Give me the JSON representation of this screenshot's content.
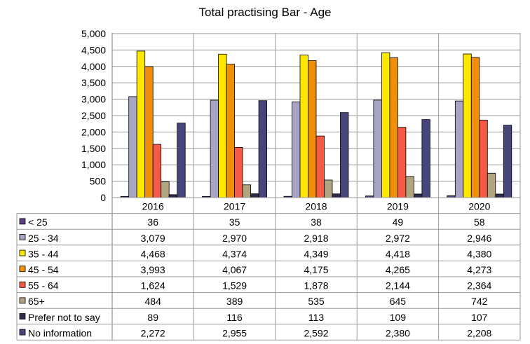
{
  "chart_data": {
    "type": "bar",
    "title": "Total practising Bar - Age",
    "categories": [
      "2016",
      "2017",
      "2018",
      "2019",
      "2020"
    ],
    "yticks": [
      "0",
      "500",
      "1,000",
      "1,500",
      "2,000",
      "2,500",
      "3,000",
      "3,500",
      "4,000",
      "4,500",
      "5,000"
    ],
    "ylim": [
      0,
      5000
    ],
    "grid": true,
    "legend": "data-table",
    "series": [
      {
        "name": "< 25",
        "color": "#5b3f80",
        "values": [
          36,
          35,
          38,
          49,
          58
        ],
        "labels": [
          "36",
          "35",
          "38",
          "49",
          "58"
        ]
      },
      {
        "name": "25 - 34",
        "color": "#a7a5c6",
        "values": [
          3079,
          2970,
          2918,
          2972,
          2946
        ],
        "labels": [
          "3,079",
          "2,970",
          "2,918",
          "2,972",
          "2,946"
        ]
      },
      {
        "name": "35 - 44",
        "color": "#ffe800",
        "values": [
          4468,
          4374,
          4349,
          4418,
          4380
        ],
        "labels": [
          "4,468",
          "4,374",
          "4,349",
          "4,418",
          "4,380"
        ]
      },
      {
        "name": "45 - 54",
        "color": "#f0900a",
        "values": [
          3993,
          4067,
          4175,
          4265,
          4273
        ],
        "labels": [
          "3,993",
          "4,067",
          "4,175",
          "4,265",
          "4,273"
        ]
      },
      {
        "name": "55 - 64",
        "color": "#f45a45",
        "values": [
          1624,
          1529,
          1878,
          2144,
          2364
        ],
        "labels": [
          "1,624",
          "1,529",
          "1,878",
          "2,144",
          "2,364"
        ]
      },
      {
        "name": "65+",
        "color": "#b0a57f",
        "values": [
          484,
          389,
          535,
          645,
          742
        ],
        "labels": [
          "484",
          "389",
          "535",
          "645",
          "742"
        ]
      },
      {
        "name": "Prefer not to say",
        "color": "#2e2b4d",
        "values": [
          89,
          116,
          113,
          109,
          107
        ],
        "labels": [
          "89",
          "116",
          "113",
          "109",
          "107"
        ]
      },
      {
        "name": "No information",
        "color": "#48457a",
        "values": [
          2272,
          2955,
          2592,
          2380,
          2208
        ],
        "labels": [
          "2,272",
          "2,955",
          "2,592",
          "2,380",
          "2,208"
        ]
      }
    ]
  }
}
